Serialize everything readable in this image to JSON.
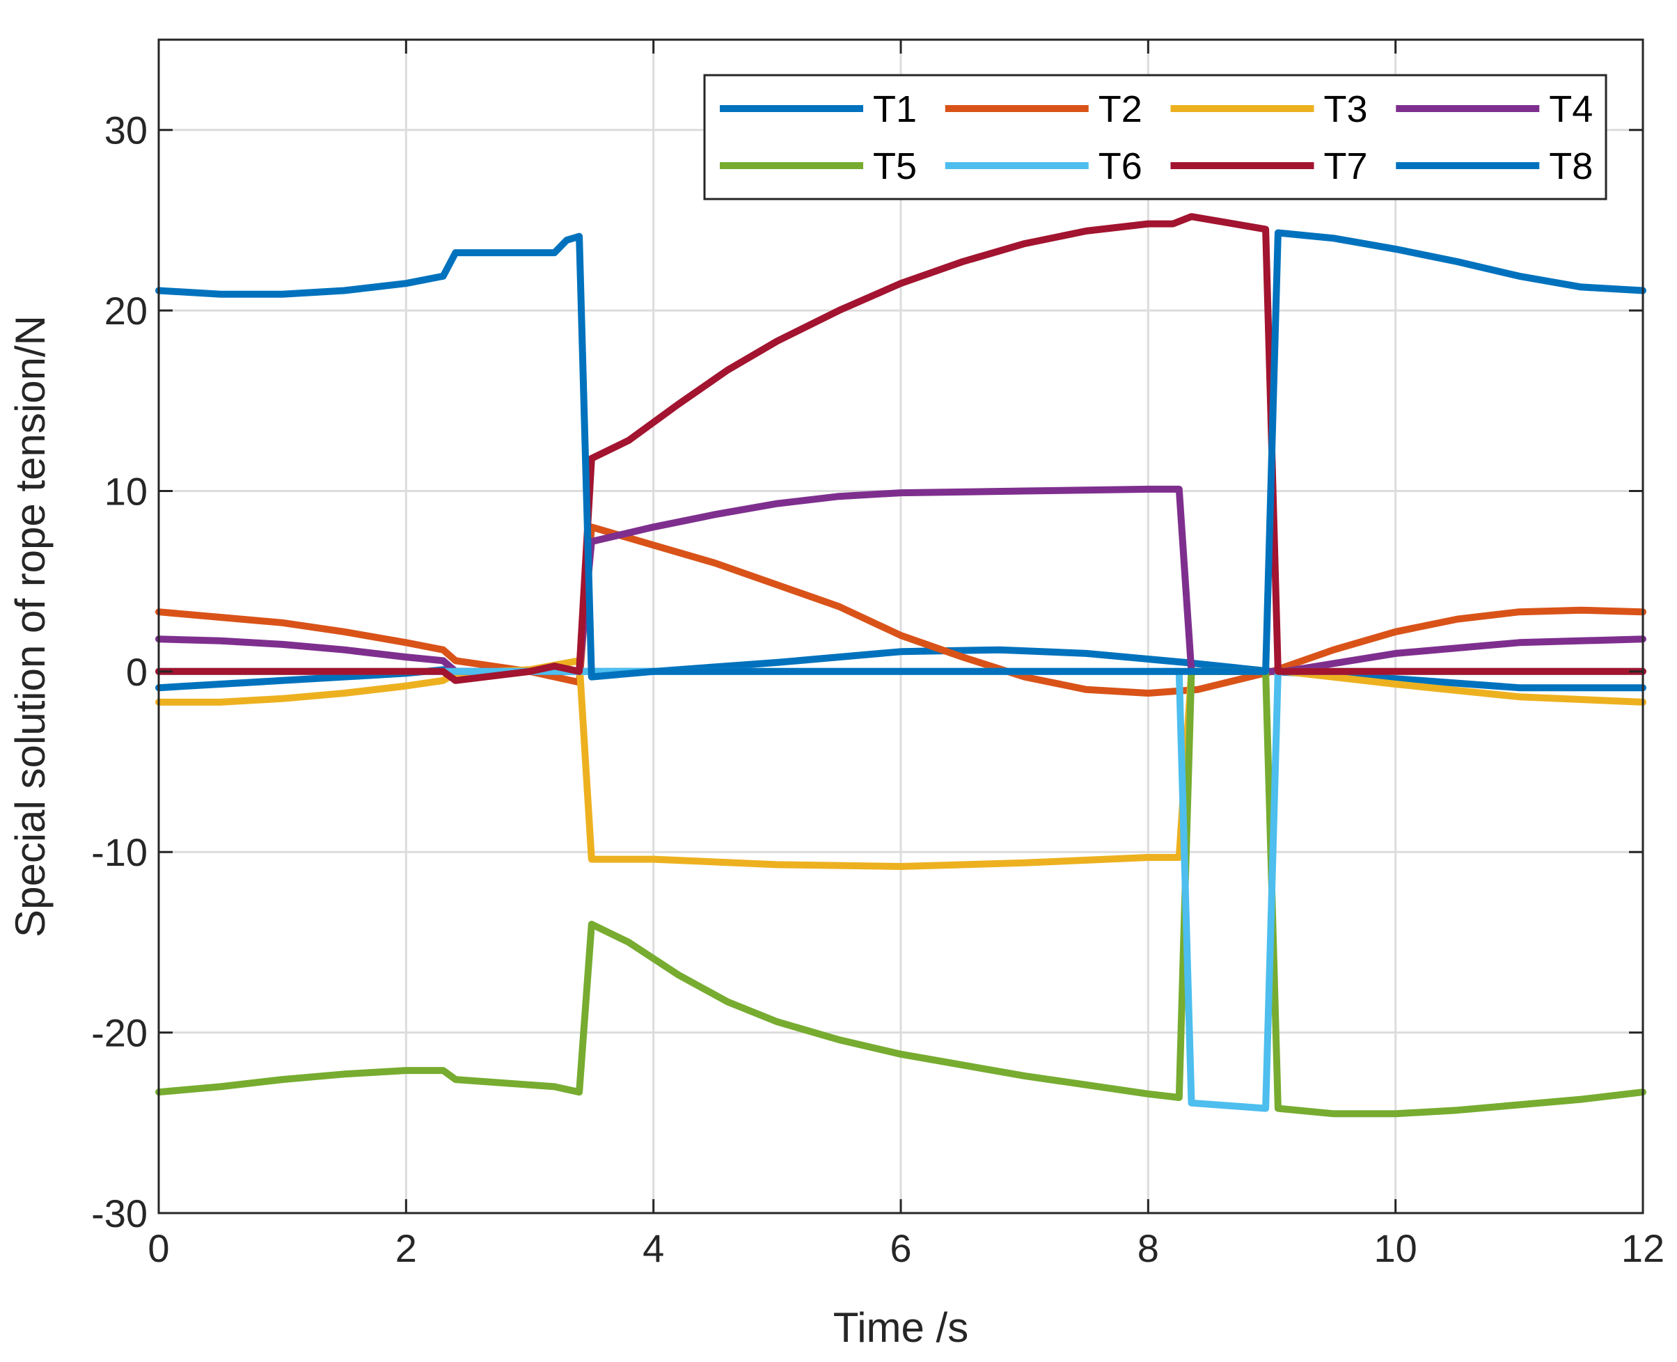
{
  "chart_data": {
    "type": "line",
    "xlabel": "Time /s",
    "ylabel": "Special solution of rope tension/N",
    "xlim": [
      0,
      12
    ],
    "ylim": [
      -30,
      35
    ],
    "xticks": [
      0,
      2,
      4,
      6,
      8,
      10,
      12
    ],
    "yticks": [
      -30,
      -20,
      -10,
      0,
      10,
      20,
      30
    ],
    "xtick_labels": [
      "0",
      "2",
      "4",
      "6",
      "8",
      "10",
      "12"
    ],
    "ytick_labels": [
      "-30",
      "-20",
      "-10",
      "0",
      "10",
      "20",
      "30"
    ],
    "grid": true,
    "legend_position": "top-right",
    "legend_columns": 4,
    "series": [
      {
        "name": "T1",
        "color": "#0072BD",
        "points": [
          [
            0,
            -0.9
          ],
          [
            1,
            -0.5
          ],
          [
            2,
            -0.1
          ],
          [
            2.3,
            0.1
          ],
          [
            2.4,
            0
          ],
          [
            3,
            0
          ],
          [
            3.4,
            0
          ],
          [
            4,
            0
          ],
          [
            5,
            0.5
          ],
          [
            6,
            1.1
          ],
          [
            6.8,
            1.2
          ],
          [
            7.5,
            1.0
          ],
          [
            8.3,
            0.5
          ],
          [
            9,
            0
          ],
          [
            10,
            -0.4
          ],
          [
            11,
            -0.9
          ],
          [
            12,
            -0.9
          ]
        ]
      },
      {
        "name": "T2",
        "color": "#D95319",
        "points": [
          [
            0,
            3.3
          ],
          [
            0.5,
            3.0
          ],
          [
            1,
            2.7
          ],
          [
            1.5,
            2.2
          ],
          [
            2,
            1.6
          ],
          [
            2.3,
            1.2
          ],
          [
            2.4,
            0.6
          ],
          [
            3,
            0
          ],
          [
            3.4,
            -0.6
          ],
          [
            3.5,
            8.0
          ],
          [
            4,
            7.0
          ],
          [
            4.5,
            6.0
          ],
          [
            5,
            4.8
          ],
          [
            5.5,
            3.6
          ],
          [
            6,
            2.0
          ],
          [
            6.5,
            0.8
          ],
          [
            7,
            -0.3
          ],
          [
            7.5,
            -1.0
          ],
          [
            8,
            -1.2
          ],
          [
            8.4,
            -1.0
          ],
          [
            9,
            0
          ],
          [
            9.5,
            1.2
          ],
          [
            10,
            2.2
          ],
          [
            10.5,
            2.9
          ],
          [
            11,
            3.3
          ],
          [
            11.5,
            3.4
          ],
          [
            12,
            3.3
          ]
        ]
      },
      {
        "name": "T3",
        "color": "#EDB120",
        "points": [
          [
            0,
            -1.7
          ],
          [
            0.5,
            -1.7
          ],
          [
            1,
            -1.5
          ],
          [
            1.5,
            -1.2
          ],
          [
            2,
            -0.8
          ],
          [
            2.3,
            -0.5
          ],
          [
            2.4,
            -0.1
          ],
          [
            3,
            0.1
          ],
          [
            3.4,
            0.6
          ],
          [
            3.5,
            -10.4
          ],
          [
            4,
            -10.4
          ],
          [
            5,
            -10.7
          ],
          [
            6,
            -10.8
          ],
          [
            7,
            -10.6
          ],
          [
            8,
            -10.3
          ],
          [
            8.25,
            -10.3
          ],
          [
            8.35,
            0
          ],
          [
            9,
            0
          ],
          [
            9.1,
            0
          ],
          [
            10,
            -0.7
          ],
          [
            11,
            -1.4
          ],
          [
            12,
            -1.7
          ]
        ]
      },
      {
        "name": "T4",
        "color": "#7E2F8E",
        "points": [
          [
            0,
            1.8
          ],
          [
            0.5,
            1.7
          ],
          [
            1,
            1.5
          ],
          [
            1.5,
            1.2
          ],
          [
            2,
            0.8
          ],
          [
            2.3,
            0.6
          ],
          [
            2.4,
            0
          ],
          [
            3,
            0
          ],
          [
            3.4,
            0
          ],
          [
            3.5,
            7.2
          ],
          [
            4,
            8.0
          ],
          [
            4.5,
            8.7
          ],
          [
            5,
            9.3
          ],
          [
            5.5,
            9.7
          ],
          [
            6,
            9.9
          ],
          [
            7,
            10.0
          ],
          [
            8,
            10.1
          ],
          [
            8.25,
            10.1
          ],
          [
            8.35,
            0
          ],
          [
            9,
            0
          ],
          [
            9.1,
            0
          ],
          [
            10,
            1.0
          ],
          [
            11,
            1.6
          ],
          [
            12,
            1.8
          ]
        ]
      },
      {
        "name": "T5",
        "color": "#77AC30",
        "points": [
          [
            0,
            -23.3
          ],
          [
            0.5,
            -23.0
          ],
          [
            1,
            -22.6
          ],
          [
            1.5,
            -22.3
          ],
          [
            2,
            -22.1
          ],
          [
            2.3,
            -22.1
          ],
          [
            2.4,
            -22.6
          ],
          [
            3,
            -22.9
          ],
          [
            3.2,
            -23.0
          ],
          [
            3.4,
            -23.3
          ],
          [
            3.5,
            -14.0
          ],
          [
            3.8,
            -15.0
          ],
          [
            4.2,
            -16.8
          ],
          [
            4.6,
            -18.3
          ],
          [
            5,
            -19.4
          ],
          [
            5.5,
            -20.4
          ],
          [
            6,
            -21.2
          ],
          [
            6.5,
            -21.8
          ],
          [
            7,
            -22.4
          ],
          [
            7.5,
            -22.9
          ],
          [
            8,
            -23.4
          ],
          [
            8.25,
            -23.6
          ],
          [
            8.35,
            0
          ],
          [
            8.95,
            0
          ],
          [
            9.05,
            -24.2
          ],
          [
            9.5,
            -24.5
          ],
          [
            10,
            -24.5
          ],
          [
            10.5,
            -24.3
          ],
          [
            11,
            -24.0
          ],
          [
            11.5,
            -23.7
          ],
          [
            12,
            -23.3
          ]
        ]
      },
      {
        "name": "T6",
        "color": "#4DBEEE",
        "points": [
          [
            0,
            0
          ],
          [
            2.3,
            0
          ],
          [
            2.4,
            0
          ],
          [
            3,
            0
          ],
          [
            3.4,
            0
          ],
          [
            3.5,
            0
          ],
          [
            8.25,
            0
          ],
          [
            8.35,
            -23.9
          ],
          [
            8.95,
            -24.2
          ],
          [
            9.05,
            0
          ],
          [
            12,
            0
          ]
        ]
      },
      {
        "name": "T7",
        "color": "#A2142F",
        "points": [
          [
            0,
            0
          ],
          [
            1,
            0
          ],
          [
            2,
            0
          ],
          [
            2.3,
            0
          ],
          [
            2.4,
            -0.5
          ],
          [
            3,
            0
          ],
          [
            3.2,
            0.3
          ],
          [
            3.4,
            0
          ],
          [
            3.5,
            11.8
          ],
          [
            3.8,
            12.8
          ],
          [
            4.2,
            14.8
          ],
          [
            4.6,
            16.7
          ],
          [
            5,
            18.3
          ],
          [
            5.5,
            20.0
          ],
          [
            6,
            21.5
          ],
          [
            6.5,
            22.7
          ],
          [
            7,
            23.7
          ],
          [
            7.5,
            24.4
          ],
          [
            8,
            24.8
          ],
          [
            8.2,
            24.8
          ],
          [
            8.35,
            25.2
          ],
          [
            8.95,
            24.5
          ],
          [
            9.05,
            0
          ],
          [
            10,
            0
          ],
          [
            12,
            0
          ]
        ]
      },
      {
        "name": "T8",
        "color": "#0072BD",
        "points": [
          [
            0,
            21.1
          ],
          [
            0.5,
            20.9
          ],
          [
            1,
            20.9
          ],
          [
            1.5,
            21.1
          ],
          [
            2,
            21.5
          ],
          [
            2.3,
            21.9
          ],
          [
            2.4,
            23.2
          ],
          [
            3,
            23.2
          ],
          [
            3.2,
            23.2
          ],
          [
            3.3,
            23.9
          ],
          [
            3.4,
            24.1
          ],
          [
            3.5,
            -0.3
          ],
          [
            4,
            0
          ],
          [
            5,
            0
          ],
          [
            6,
            0
          ],
          [
            7,
            0
          ],
          [
            8,
            0
          ],
          [
            8.5,
            0
          ],
          [
            8.95,
            0
          ],
          [
            9.05,
            24.3
          ],
          [
            9.5,
            24.0
          ],
          [
            10,
            23.4
          ],
          [
            10.5,
            22.7
          ],
          [
            11,
            21.9
          ],
          [
            11.5,
            21.3
          ],
          [
            12,
            21.1
          ]
        ]
      }
    ]
  }
}
